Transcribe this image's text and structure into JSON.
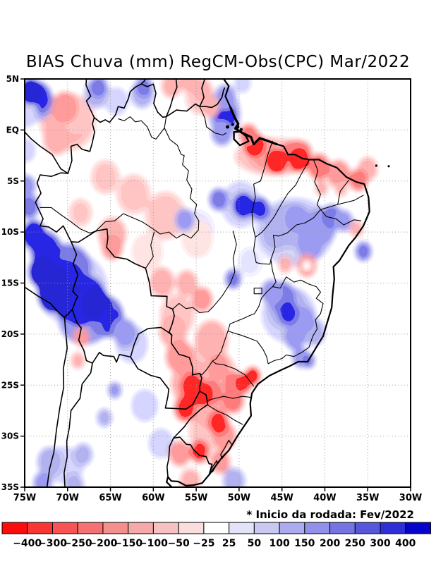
{
  "title": "BIAS Chuva (mm) RegCM-Obs(CPC) Mar/2022",
  "footnote": "* Inicio da rodada: Fev/2022",
  "axes": {
    "x_ticks": [
      "75W",
      "70W",
      "65W",
      "60W",
      "55W",
      "50W",
      "45W",
      "40W",
      "35W",
      "30W"
    ],
    "y_ticks": [
      "5N",
      "EQ",
      "5S",
      "10S",
      "15S",
      "20S",
      "25S",
      "30S",
      "35S"
    ]
  },
  "colorbar": {
    "labels": [
      "−400",
      "−300",
      "−250",
      "−200",
      "−150",
      "−100",
      "−50",
      "−25",
      "25",
      "50",
      "100",
      "150",
      "200",
      "250",
      "300",
      "400"
    ],
    "colors": [
      "#fb0d0d",
      "#f93636",
      "#f75555",
      "#f67272",
      "#f58f8e",
      "#f5a9a8",
      "#f6c2c1",
      "#fadedd",
      "#ffffff",
      "#e2e2f9",
      "#c8c8f3",
      "#ababee",
      "#9191e9",
      "#7474e3",
      "#5757de",
      "#2e2ed7",
      "#0404cd"
    ]
  },
  "chart_data": {
    "type": "filled_contour_map",
    "title": "BIAS Chuva (mm) RegCM-Obs(CPC) Mar/2022",
    "variable": "precipitation bias",
    "units": "mm",
    "model": "RegCM",
    "observation": "CPC",
    "month": "Mar/2022",
    "run_start": "Fev/2022",
    "lon_range": [
      -75,
      -30
    ],
    "lat_range": [
      -35,
      5
    ],
    "levels": [
      -400,
      -300,
      -250,
      -200,
      -150,
      -100,
      -50,
      -25,
      25,
      50,
      100,
      150,
      200,
      250,
      300,
      400
    ],
    "anomalies": [
      {
        "lon": -74.3,
        "lat": 3.8,
        "v": 420,
        "r": 1.3
      },
      {
        "lon": -73.9,
        "lat": 3.2,
        "v": 270,
        "r": 2.1,
        "ry": 1.7
      },
      {
        "lon": -73.6,
        "lat": 2.8,
        "v": 170,
        "r": 1.9
      },
      {
        "lon": -74.6,
        "lat": 2.4,
        "v": 120,
        "r": 1.9
      },
      {
        "lon": -74.9,
        "lat": 1.6,
        "v": 70,
        "r": 1.4
      },
      {
        "lon": -70.1,
        "lat": 0.9,
        "v": -120,
        "r": 2.6,
        "ry": 2.3
      },
      {
        "lon": -70.0,
        "lat": 0.8,
        "v": -70,
        "r": 3.3,
        "ry": 2.9
      },
      {
        "lon": -70.3,
        "lat": 2.2,
        "v": -170,
        "r": 1.6
      },
      {
        "lon": -71.3,
        "lat": -0.9,
        "v": -120,
        "r": 1.6
      },
      {
        "lon": -69.0,
        "lat": 1.5,
        "v": -70,
        "r": 1.8
      },
      {
        "lon": -66.4,
        "lat": 4.2,
        "v": 220,
        "r": 1.1
      },
      {
        "lon": -66.6,
        "lat": 3.6,
        "v": 120,
        "r": 1.5
      },
      {
        "lon": -64.3,
        "lat": 2.8,
        "v": 70,
        "r": 1.4
      },
      {
        "lon": -61.1,
        "lat": 4.2,
        "v": 220,
        "r": 1.05
      },
      {
        "lon": -61.3,
        "lat": 3.5,
        "v": 120,
        "r": 1.4
      },
      {
        "lon": -57.9,
        "lat": 4.3,
        "v": -120,
        "r": 1.2
      },
      {
        "lon": -55.8,
        "lat": 4.7,
        "v": -120,
        "r": 1.1
      },
      {
        "lon": -54.3,
        "lat": 3.9,
        "v": -120,
        "r": 1.2
      },
      {
        "lon": -53.4,
        "lat": 2.3,
        "v": -120,
        "r": 1.1
      },
      {
        "lon": -54.6,
        "lat": 3.2,
        "v": -70,
        "r": 1.7
      },
      {
        "lon": -51.7,
        "lat": 1.6,
        "v": 120,
        "r": 1.9,
        "ry": 2.4
      },
      {
        "lon": -51.6,
        "lat": 3.2,
        "v": 170,
        "r": 1.3
      },
      {
        "lon": -51.6,
        "lat": 1.3,
        "v": 320,
        "r": 1.35
      },
      {
        "lon": -52.0,
        "lat": -0.3,
        "v": 170,
        "r": 1.3
      },
      {
        "lon": -49.6,
        "lat": 4.6,
        "v": 70,
        "r": 1.0
      },
      {
        "lon": -46.0,
        "lat": -2.6,
        "v": -70,
        "r": 4.6,
        "ry": 1.9
      },
      {
        "lon": -45.3,
        "lat": -2.9,
        "v": -120,
        "r": 3.8,
        "ry": 1.5
      },
      {
        "lon": -48.3,
        "lat": -1.4,
        "v": -320,
        "r": 1.3
      },
      {
        "lon": -47.0,
        "lat": -2.2,
        "v": -170,
        "r": 1.5
      },
      {
        "lon": -45.6,
        "lat": -3.1,
        "v": -420,
        "r": 1.2
      },
      {
        "lon": -43.0,
        "lat": -3.0,
        "v": -320,
        "r": 1.2
      },
      {
        "lon": -43.3,
        "lat": -2.0,
        "v": -220,
        "r": 1.8,
        "ry": 1.1
      },
      {
        "lon": -40.7,
        "lat": -3.6,
        "v": -220,
        "r": 1.35
      },
      {
        "lon": -38.4,
        "lat": -4.3,
        "v": -170,
        "r": 1.4
      },
      {
        "lon": -36.1,
        "lat": -4.9,
        "v": -220,
        "r": 1.15
      },
      {
        "lon": -35.0,
        "lat": -3.8,
        "v": -120,
        "r": 1.2
      },
      {
        "lon": -48.9,
        "lat": -0.5,
        "v": -220,
        "r": 1.15
      },
      {
        "lon": -40.4,
        "lat": -5.7,
        "v": -120,
        "r": 0.8
      },
      {
        "lon": -38.1,
        "lat": -5.8,
        "v": -120,
        "r": 0.75
      },
      {
        "lon": -36.3,
        "lat": -9.7,
        "v": -120,
        "r": 0.85
      },
      {
        "lon": -43.5,
        "lat": -10.0,
        "v": 70,
        "r": 4.6,
        "ry": 3.4
      },
      {
        "lon": -44.0,
        "lat": -9.3,
        "v": 120,
        "r": 3.0,
        "ry": 2.2
      },
      {
        "lon": -49.8,
        "lat": -7.3,
        "v": 70,
        "r": 2.3
      },
      {
        "lon": -49.5,
        "lat": -7.4,
        "v": 320,
        "r": 1.25
      },
      {
        "lon": -47.6,
        "lat": -7.7,
        "v": 270,
        "r": 1.2
      },
      {
        "lon": -52.4,
        "lat": -6.8,
        "v": 220,
        "r": 1.15
      },
      {
        "lon": -56.3,
        "lat": -8.8,
        "v": 170,
        "r": 1.15
      },
      {
        "lon": -54.8,
        "lat": -9.8,
        "v": 35,
        "r": 2.0
      },
      {
        "lon": -39.2,
        "lat": -8.5,
        "v": 220,
        "r": 1.25
      },
      {
        "lon": -37.8,
        "lat": -8.9,
        "v": 170,
        "r": 1.1
      },
      {
        "lon": -35.5,
        "lat": -11.9,
        "v": 220,
        "r": 1.0
      },
      {
        "lon": -40.5,
        "lat": -9.5,
        "v": 170,
        "r": 1.9
      },
      {
        "lon": -41.7,
        "lat": -11.2,
        "v": 170,
        "r": 1.6
      },
      {
        "lon": -43.3,
        "lat": -8.7,
        "v": 170,
        "r": 1.45
      },
      {
        "lon": -45.8,
        "lat": -10.2,
        "v": 120,
        "r": 1.6
      },
      {
        "lon": -50.7,
        "lat": -14.6,
        "v": 220,
        "r": 1.0
      },
      {
        "lon": -48.7,
        "lat": -12.9,
        "v": 35,
        "r": 1.5
      },
      {
        "lon": -42.1,
        "lat": -13.3,
        "v": -170,
        "r": 1.15
      },
      {
        "lon": -42.1,
        "lat": -13.3,
        "v": 0,
        "r": 0.5
      },
      {
        "lon": -44.6,
        "lat": -13.2,
        "v": -120,
        "r": 0.85
      },
      {
        "lon": -44.2,
        "lat": -18.1,
        "v": 70,
        "r": 3.2,
        "ry": 2.8
      },
      {
        "lon": -44.4,
        "lat": -17.4,
        "v": 120,
        "r": 2.3,
        "ry": 2.1
      },
      {
        "lon": -45.0,
        "lat": -16.4,
        "v": 220,
        "r": 1.6
      },
      {
        "lon": -44.3,
        "lat": -17.9,
        "v": 270,
        "r": 1.25
      },
      {
        "lon": -46.2,
        "lat": -15.9,
        "v": 170,
        "r": 1.3
      },
      {
        "lon": -42.4,
        "lat": -18.6,
        "v": 170,
        "r": 1.35
      },
      {
        "lon": -43.5,
        "lat": -20.3,
        "v": 170,
        "r": 1.3
      },
      {
        "lon": -41.3,
        "lat": -19.8,
        "v": 120,
        "r": 1.4
      },
      {
        "lon": -42.8,
        "lat": -22.3,
        "v": 170,
        "r": 1.05
      },
      {
        "lon": -41.9,
        "lat": -22.6,
        "v": 220,
        "r": 0.8
      },
      {
        "lon": -65.6,
        "lat": -4.6,
        "v": -70,
        "r": 1.7
      },
      {
        "lon": -62.3,
        "lat": -6.3,
        "v": -70,
        "r": 2.0
      },
      {
        "lon": -58.6,
        "lat": -8.4,
        "v": -70,
        "r": 2.4
      },
      {
        "lon": -54.9,
        "lat": -10.7,
        "v": -35,
        "r": 1.9
      },
      {
        "lon": -64.8,
        "lat": -10.2,
        "v": -120,
        "r": 1.7
      },
      {
        "lon": -64.8,
        "lat": -11.5,
        "v": -170,
        "r": 1.3
      },
      {
        "lon": -68.5,
        "lat": -8.1,
        "v": -70,
        "r": 1.4
      },
      {
        "lon": -60.7,
        "lat": -11.9,
        "v": -35,
        "r": 1.9
      },
      {
        "lon": -74.9,
        "lat": -2.0,
        "v": 70,
        "r": 1.2
      },
      {
        "lon": -74.8,
        "lat": -5.5,
        "v": 170,
        "r": 1.15
      },
      {
        "lon": -74.5,
        "lat": -7.5,
        "v": 220,
        "r": 1.25
      },
      {
        "lon": -73.9,
        "lat": -10.3,
        "v": 320,
        "r": 1.5
      },
      {
        "lon": -73.0,
        "lat": -13.9,
        "v": 420,
        "r": 1.6
      },
      {
        "lon": -72.5,
        "lat": -11.8,
        "v": 270,
        "r": 1.9
      },
      {
        "lon": -71.9,
        "lat": -14.9,
        "v": 420,
        "r": 1.8
      },
      {
        "lon": -71.8,
        "lat": -16.2,
        "v": 420,
        "r": 1.7
      },
      {
        "lon": -70.0,
        "lat": -13.5,
        "v": 220,
        "r": 2.8,
        "ry": 2.4
      },
      {
        "lon": -69.8,
        "lat": -16.9,
        "v": 420,
        "r": 1.8
      },
      {
        "lon": -68.6,
        "lat": -17.5,
        "v": 320,
        "r": 1.7
      },
      {
        "lon": -66.5,
        "lat": -17.1,
        "v": 420,
        "r": 1.6
      },
      {
        "lon": -67.7,
        "lat": -16.4,
        "v": 320,
        "r": 2.1
      },
      {
        "lon": -70.5,
        "lat": -14.8,
        "v": 320,
        "r": 2.4,
        "ry": 2.0
      },
      {
        "lon": -65.5,
        "lat": -18.3,
        "v": 220,
        "r": 2.1
      },
      {
        "lon": -64.8,
        "lat": -18.8,
        "v": 270,
        "r": 1.45
      },
      {
        "lon": -63.3,
        "lat": -19.9,
        "v": 170,
        "r": 1.45
      },
      {
        "lon": -68.0,
        "lat": -18.6,
        "v": 170,
        "r": 3.1,
        "ry": 2.5
      },
      {
        "lon": -69.5,
        "lat": -15.5,
        "v": 70,
        "r": 4.2,
        "ry": 3.6
      },
      {
        "lon": -62.5,
        "lat": -21.0,
        "v": 70,
        "r": 1.9
      },
      {
        "lon": -68.4,
        "lat": -20.3,
        "v": -170,
        "r": 0.95
      },
      {
        "lon": -68.8,
        "lat": -22.6,
        "v": -120,
        "r": 0.85
      },
      {
        "lon": -64.5,
        "lat": -25.5,
        "v": 170,
        "r": 0.85
      },
      {
        "lon": -65.7,
        "lat": -28.2,
        "v": 120,
        "r": 0.95
      },
      {
        "lon": -68.2,
        "lat": -31.8,
        "v": 120,
        "r": 1.15
      },
      {
        "lon": -72.1,
        "lat": -32.5,
        "v": 120,
        "r": 1.5
      },
      {
        "lon": -72.9,
        "lat": -34.6,
        "v": 170,
        "r": 1.15
      },
      {
        "lon": -69.2,
        "lat": -34.8,
        "v": 120,
        "r": 1.15
      },
      {
        "lon": -70.5,
        "lat": -32.8,
        "v": 70,
        "r": 2.5,
        "ry": 1.8
      },
      {
        "lon": -61.0,
        "lat": -27.0,
        "v": 70,
        "r": 1.6
      },
      {
        "lon": -59.1,
        "lat": -30.7,
        "v": 70,
        "r": 1.5
      },
      {
        "lon": -59.0,
        "lat": -14.9,
        "v": -120,
        "r": 1.5
      },
      {
        "lon": -56.1,
        "lat": -15.0,
        "v": -120,
        "r": 1.3
      },
      {
        "lon": -54.3,
        "lat": -16.6,
        "v": -170,
        "r": 1.25
      },
      {
        "lon": -57.2,
        "lat": -18.1,
        "v": -70,
        "r": 2.1
      },
      {
        "lon": -57.7,
        "lat": -19.7,
        "v": -120,
        "r": 1.7
      },
      {
        "lon": -53.2,
        "lat": -20.6,
        "v": -120,
        "r": 2.0
      },
      {
        "lon": -56.9,
        "lat": -22.2,
        "v": -170,
        "r": 1.7
      },
      {
        "lon": -53.8,
        "lat": -24.5,
        "v": -70,
        "r": 3.8,
        "ry": 3.4
      },
      {
        "lon": -55.3,
        "lat": -24.8,
        "v": -120,
        "r": 2.7,
        "ry": 2.3
      },
      {
        "lon": -53.5,
        "lat": -27.5,
        "v": -120,
        "r": 2.0,
        "ry": 1.8
      },
      {
        "lon": -55.5,
        "lat": -25.1,
        "v": -270,
        "r": 1.45
      },
      {
        "lon": -54.3,
        "lat": -25.9,
        "v": -320,
        "r": 1.2
      },
      {
        "lon": -56.3,
        "lat": -27.3,
        "v": -270,
        "r": 1.35
      },
      {
        "lon": -53.2,
        "lat": -25.7,
        "v": -220,
        "r": 1.3
      },
      {
        "lon": -52.4,
        "lat": -23.2,
        "v": -170,
        "r": 1.3
      },
      {
        "lon": -50.7,
        "lat": -24.9,
        "v": -220,
        "r": 1.2
      },
      {
        "lon": -48.4,
        "lat": -24.1,
        "v": -320,
        "r": 0.95
      },
      {
        "lon": -49.5,
        "lat": -24.8,
        "v": -270,
        "r": 1.1
      },
      {
        "lon": -50.7,
        "lat": -26.5,
        "v": -220,
        "r": 1.3
      },
      {
        "lon": -52.4,
        "lat": -28.7,
        "v": -270,
        "r": 1.3
      },
      {
        "lon": -54.6,
        "lat": -31.5,
        "v": -270,
        "r": 1.2
      },
      {
        "lon": -56.9,
        "lat": -31.7,
        "v": -170,
        "r": 1.3
      },
      {
        "lon": -51.7,
        "lat": -30.0,
        "v": -170,
        "r": 1.4
      },
      {
        "lon": -52.2,
        "lat": -32.5,
        "v": -170,
        "r": 1.2
      },
      {
        "lon": -53.6,
        "lat": -29.5,
        "v": -70,
        "r": 2.3,
        "ry": 1.9
      },
      {
        "lon": -55.7,
        "lat": -34.4,
        "v": -120,
        "r": 1.25
      },
      {
        "lon": -50.6,
        "lat": -34.4,
        "v": 120,
        "r": 1.35
      }
    ]
  }
}
